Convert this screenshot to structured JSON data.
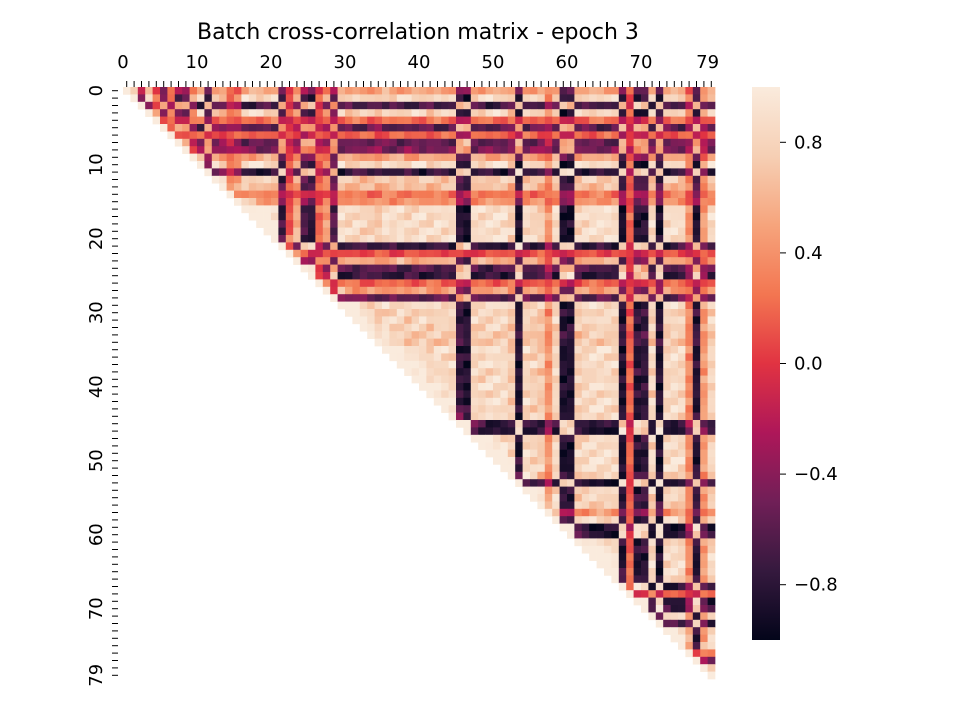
{
  "chart_data": {
    "type": "heatmap",
    "title": "Batch cross-correlation matrix - epoch 3",
    "xlabel": "",
    "ylabel": "",
    "size": 80,
    "mask": "lower-triangle",
    "diagonal": 1.0,
    "value_range": [
      -1,
      1
    ],
    "colormap": "rocket",
    "x_axis_position": "top",
    "x_tick_labels": [
      "0",
      "10",
      "20",
      "30",
      "40",
      "50",
      "60",
      "70",
      "79"
    ],
    "x_tick_values": [
      0,
      10,
      20,
      30,
      40,
      50,
      60,
      70,
      79
    ],
    "y_tick_labels": [
      "0",
      "10",
      "20",
      "30",
      "40",
      "50",
      "60",
      "70",
      "79"
    ],
    "y_tick_values": [
      0,
      10,
      20,
      30,
      40,
      50,
      60,
      70,
      79
    ],
    "colorbar": {
      "position": "right",
      "tick_labels": [
        "0.8",
        "0.4",
        "0.0",
        "−0.4",
        "−0.8"
      ],
      "tick_values": [
        0.8,
        0.4,
        0.0,
        -0.4,
        -0.8
      ]
    },
    "grid": false,
    "cluster_signs": [
      1,
      1,
      -1,
      1,
      1,
      -1,
      1,
      -1,
      -1,
      1,
      1,
      -1,
      1,
      1,
      1,
      1,
      1,
      1,
      1,
      1,
      1,
      -1,
      1,
      1,
      -1,
      -1,
      1,
      1,
      -1,
      1,
      1,
      1,
      1,
      1,
      1,
      1,
      1,
      1,
      1,
      1,
      1,
      1,
      1,
      1,
      1,
      -1,
      -1,
      1,
      1,
      1,
      1,
      1,
      1,
      -1,
      1,
      1,
      1,
      1,
      1,
      -1,
      -1,
      1,
      1,
      1,
      1,
      1,
      1,
      -1,
      1,
      -1,
      -1,
      1,
      -1,
      1,
      1,
      1,
      1,
      -1,
      1,
      1
    ],
    "cluster_strengths": [
      0.55,
      0.9,
      0.75,
      0.9,
      0.25,
      0.65,
      0.2,
      0.6,
      0.5,
      0.55,
      0.95,
      0.85,
      0.8,
      0.7,
      0.3,
      0.45,
      0.95,
      0.95,
      0.95,
      0.95,
      0.95,
      0.85,
      0.1,
      0.6,
      0.7,
      0.85,
      0.2,
      0.5,
      0.65,
      0.95,
      0.85,
      0.9,
      0.85,
      0.8,
      0.75,
      0.95,
      0.9,
      0.95,
      0.85,
      0.9,
      0.95,
      0.85,
      0.95,
      0.9,
      0.9,
      0.85,
      0.95,
      0.9,
      0.9,
      0.95,
      0.95,
      0.95,
      0.8,
      0.95,
      0.9,
      0.85,
      0.8,
      0.45,
      0.9,
      0.95,
      0.95,
      0.85,
      0.9,
      0.95,
      0.95,
      0.95,
      0.9,
      0.95,
      0.2,
      0.9,
      0.85,
      0.9,
      0.95,
      0.9,
      0.95,
      0.9,
      0.4,
      0.9,
      0.5,
      0.9
    ]
  }
}
